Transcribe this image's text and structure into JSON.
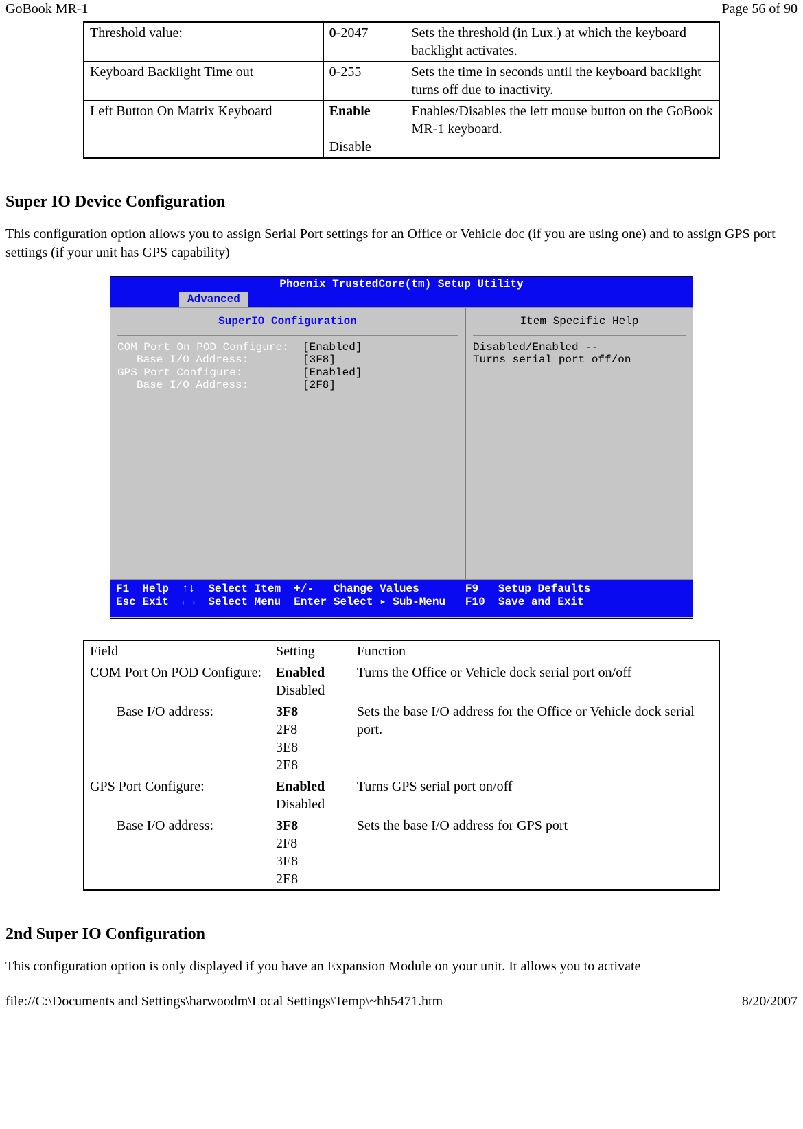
{
  "header": {
    "left": "GoBook MR-1",
    "right": "Page 56 of 90"
  },
  "footer": {
    "left": "file://C:\\Documents and Settings\\harwoodm\\Local Settings\\Temp\\~hh5471.htm",
    "right": "8/20/2007"
  },
  "top_table": {
    "rows": [
      {
        "field": "Threshold value:",
        "setting_bold": "0",
        "setting_rest": "-2047",
        "function": "Sets the threshold (in Lux.) at which the keyboard backlight activates."
      },
      {
        "field": "Keyboard Backlight Time out",
        "setting_bold": "",
        "setting_rest": "0-255",
        "function": "Sets the time in seconds until the keyboard backlight turns off due to inactivity."
      },
      {
        "field": "Left Button On Matrix Keyboard",
        "setting_lines": [
          {
            "bold": true,
            "text": "Enable"
          },
          {
            "bold": false,
            "text": ""
          },
          {
            "bold": false,
            "text": "Disable"
          }
        ],
        "function": "Enables/Disables the left mouse button on the GoBook MR-1 keyboard."
      }
    ]
  },
  "section1": {
    "heading": "Super IO Device Configuration",
    "para": "This configuration option allows you to assign Serial Port settings for an Office or Vehicle doc (if you are using one) and to assign GPS port settings (if your unit has GPS capability)"
  },
  "bios": {
    "title": "Phoenix TrustedCore(tm) Setup Utility",
    "tab": "Advanced",
    "left_header": "SuperIO Configuration",
    "right_header": "Item Specific Help",
    "help_text": "Disabled/Enabled --\nTurns serial port off/on",
    "rows": [
      {
        "indent": false,
        "label": "COM Port On POD Configure:",
        "value": "[Enabled]"
      },
      {
        "indent": true,
        "label": "Base I/O Address:",
        "value": "[3F8]"
      },
      {
        "indent": false,
        "label": "GPS Port Configure:",
        "value": "[Enabled]"
      },
      {
        "indent": true,
        "label": "Base I/O Address:",
        "value": "[2F8]"
      }
    ],
    "footer": {
      "line1": "F1  Help  ↑↓  Select Item  +/-   Change Values       F9   Setup Defaults",
      "line2": "Esc Exit  ←→  Select Menu  Enter Select ▸ Sub-Menu   F10  Save and Exit"
    },
    "colors": {
      "bg": "#c6c6c6",
      "bar": "#0a0af0",
      "text_white": "#ffffff",
      "text_black": "#000000"
    }
  },
  "io_table": {
    "header": {
      "field": "Field",
      "setting": "Setting",
      "function": "Function"
    },
    "rows": [
      {
        "indent": false,
        "field": "COM Port On POD Configure:",
        "settings": [
          {
            "bold": true,
            "text": "Enabled"
          },
          {
            "bold": false,
            "text": "Disabled"
          }
        ],
        "function": "Turns the Office or Vehicle dock serial port on/off"
      },
      {
        "indent": true,
        "field": "Base I/O address:",
        "settings": [
          {
            "bold": true,
            "text": "3F8"
          },
          {
            "bold": false,
            "text": "2F8"
          },
          {
            "bold": false,
            "text": "3E8"
          },
          {
            "bold": false,
            "text": "2E8"
          }
        ],
        "function": "Sets the base I/O address for the Office or Vehicle dock serial port."
      },
      {
        "indent": false,
        "field": "GPS Port Configure:",
        "settings": [
          {
            "bold": true,
            "text": "Enabled"
          },
          {
            "bold": false,
            "text": "Disabled"
          }
        ],
        "function": "Turns GPS serial port on/off"
      },
      {
        "indent": true,
        "field": "Base I/O address:",
        "settings": [
          {
            "bold": true,
            "text": "3F8"
          },
          {
            "bold": false,
            "text": "2F8"
          },
          {
            "bold": false,
            "text": "3E8"
          },
          {
            "bold": false,
            "text": "2E8"
          }
        ],
        "function": "Sets the base I/O address for GPS port"
      }
    ]
  },
  "section2": {
    "heading": "2nd Super IO Configuration",
    "para": "This configuration option is only displayed if you have an Expansion Module on your unit.  It allows you to activate"
  }
}
